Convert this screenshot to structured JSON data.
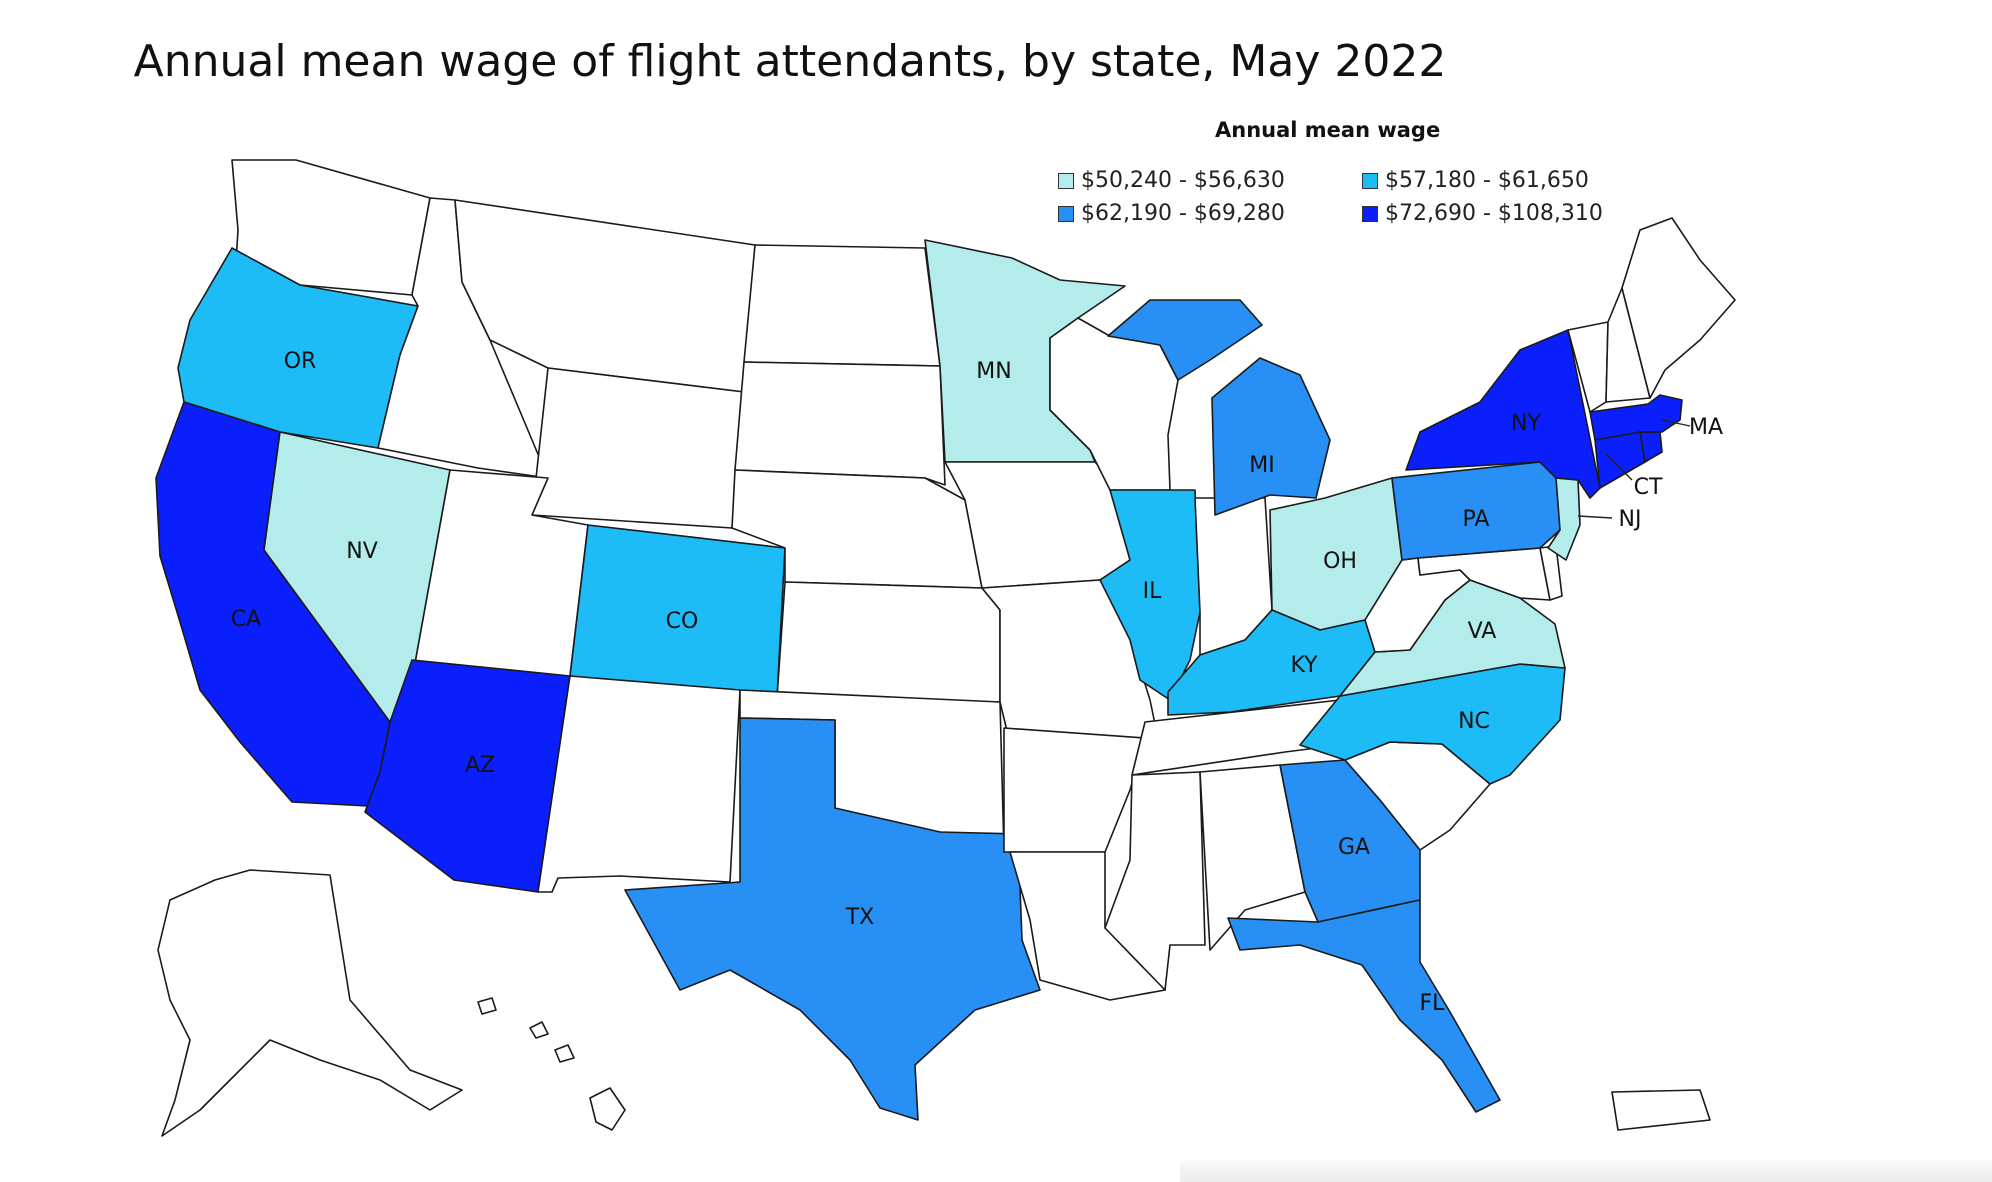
{
  "title": "Annual mean wage of flight attendants, by state, May 2022",
  "legend": {
    "title": "Annual mean wage",
    "items": [
      {
        "label": "$50,240 - $56,630",
        "color": "#b4ecec"
      },
      {
        "label": "$57,180 - $61,650",
        "color": "#1ebcf7"
      },
      {
        "label": "$62,190 - $69,280",
        "color": "#2890f5"
      },
      {
        "label": "$72,690 - $108,310",
        "color": "#0b1ffc"
      }
    ]
  },
  "no_data_color": "#ffffff",
  "states": [
    {
      "id": "WA",
      "class": 0
    },
    {
      "id": "OR",
      "label": "OR",
      "class": 2
    },
    {
      "id": "CA",
      "label": "CA",
      "class": 4
    },
    {
      "id": "NV",
      "label": "NV",
      "class": 1
    },
    {
      "id": "ID",
      "class": 0
    },
    {
      "id": "MT",
      "class": 0
    },
    {
      "id": "WY",
      "class": 0
    },
    {
      "id": "UT",
      "class": 0
    },
    {
      "id": "AZ",
      "label": "AZ",
      "class": 4
    },
    {
      "id": "CO",
      "label": "CO",
      "class": 2
    },
    {
      "id": "NM",
      "class": 0
    },
    {
      "id": "ND",
      "class": 0
    },
    {
      "id": "SD",
      "class": 0
    },
    {
      "id": "NE",
      "class": 0
    },
    {
      "id": "KS",
      "class": 0
    },
    {
      "id": "OK",
      "class": 0
    },
    {
      "id": "TX",
      "label": "TX",
      "class": 3
    },
    {
      "id": "MN",
      "label": "MN",
      "class": 1
    },
    {
      "id": "IA",
      "class": 0
    },
    {
      "id": "MO",
      "class": 0
    },
    {
      "id": "AR",
      "class": 0
    },
    {
      "id": "LA",
      "class": 0
    },
    {
      "id": "WI",
      "class": 0
    },
    {
      "id": "IL",
      "label": "IL",
      "class": 2
    },
    {
      "id": "MI",
      "label": "MI",
      "class": 3
    },
    {
      "id": "IN",
      "class": 0
    },
    {
      "id": "OH",
      "label": "OH",
      "class": 1
    },
    {
      "id": "KY",
      "label": "KY",
      "class": 2
    },
    {
      "id": "TN",
      "class": 0
    },
    {
      "id": "MS",
      "class": 0
    },
    {
      "id": "AL",
      "class": 0
    },
    {
      "id": "GA",
      "label": "GA",
      "class": 3
    },
    {
      "id": "FL",
      "label": "FL",
      "class": 3
    },
    {
      "id": "SC",
      "class": 0
    },
    {
      "id": "NC",
      "label": "NC",
      "class": 2
    },
    {
      "id": "VA",
      "label": "VA",
      "class": 1
    },
    {
      "id": "WV",
      "class": 0
    },
    {
      "id": "MD",
      "class": 0
    },
    {
      "id": "DE",
      "class": 0
    },
    {
      "id": "PA",
      "label": "PA",
      "class": 3
    },
    {
      "id": "NJ",
      "label": "NJ",
      "class": 1
    },
    {
      "id": "NY",
      "label": "NY",
      "class": 4
    },
    {
      "id": "CT",
      "label": "CT",
      "class": 4
    },
    {
      "id": "RI",
      "class": 4
    },
    {
      "id": "MA",
      "label": "MA",
      "class": 4
    },
    {
      "id": "VT",
      "class": 0
    },
    {
      "id": "NH",
      "class": 0
    },
    {
      "id": "ME",
      "class": 0
    },
    {
      "id": "AK",
      "class": 0
    },
    {
      "id": "HI",
      "class": 0
    },
    {
      "id": "PR",
      "class": 0
    }
  ]
}
